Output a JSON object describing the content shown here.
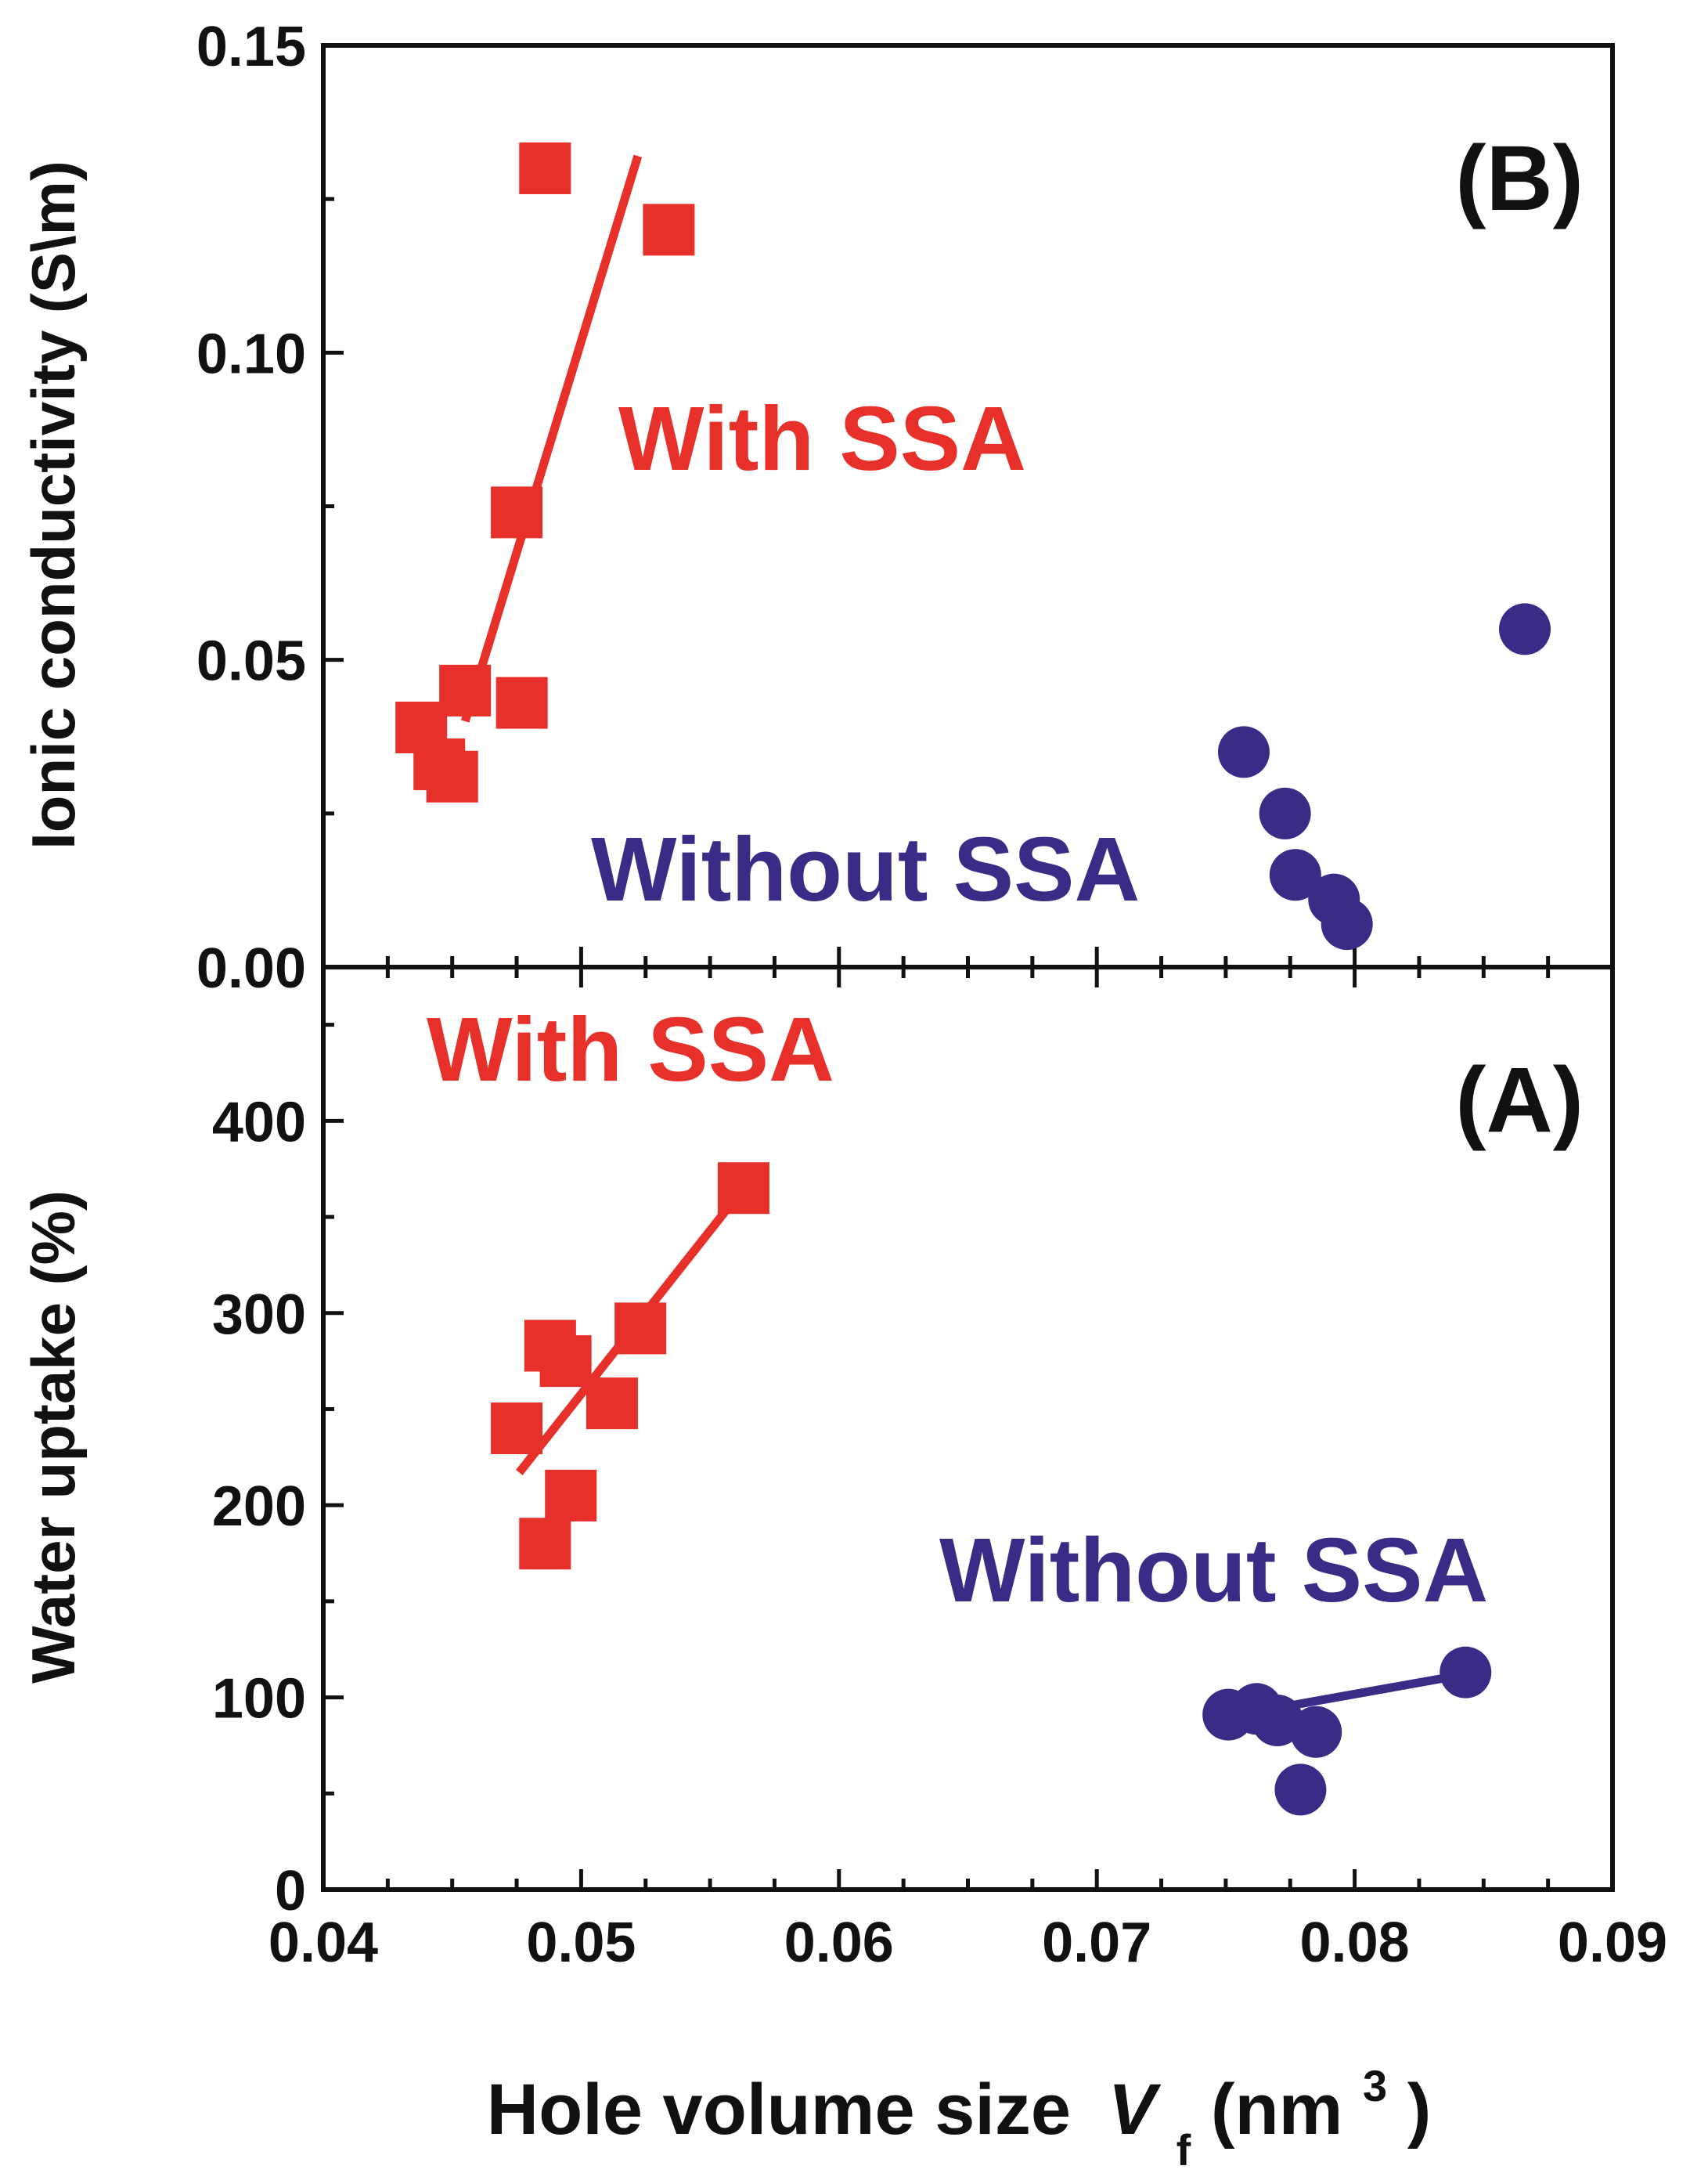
{
  "chart_data": [
    {
      "panel": "B",
      "type": "scatter",
      "panel_label": "(B)",
      "ylabel": "Ionic conductivity (S\\m)",
      "xlim": [
        0.04,
        0.09
      ],
      "ylim": [
        0.0,
        0.15
      ],
      "x_ticks": [
        "0.04",
        "0.05",
        "0.06",
        "0.07",
        "0.08",
        "0.09"
      ],
      "y_ticks": [
        {
          "value": 0.0,
          "label": "0.00"
        },
        {
          "value": 0.05,
          "label": "0.05"
        },
        {
          "value": 0.1,
          "label": "0.10"
        },
        {
          "value": 0.15,
          "label": "0.15"
        }
      ],
      "series": [
        {
          "name": "With SSA",
          "annotation": "With SSA",
          "marker": "square",
          "color": "#e8302a",
          "points": [
            [
              0.0486,
              0.13
            ],
            [
              0.0534,
              0.12
            ],
            [
              0.0475,
              0.074
            ],
            [
              0.0455,
              0.045
            ],
            [
              0.0477,
              0.043
            ],
            [
              0.0438,
              0.039
            ],
            [
              0.0445,
              0.033
            ],
            [
              0.045,
              0.031
            ]
          ],
          "fit_line": [
            [
              0.0455,
              0.04
            ],
            [
              0.0522,
              0.132
            ]
          ]
        },
        {
          "name": "Without SSA",
          "annotation": "Without SSA",
          "marker": "circle",
          "color": "#3b2a86",
          "points": [
            [
              0.0866,
              0.055
            ],
            [
              0.0757,
              0.035
            ],
            [
              0.0773,
              0.025
            ],
            [
              0.0777,
              0.015
            ],
            [
              0.0792,
              0.011
            ],
            [
              0.0797,
              0.007
            ]
          ]
        }
      ]
    },
    {
      "panel": "A",
      "type": "scatter",
      "panel_label": "(A)",
      "ylabel": "Water uptake (%)",
      "xlabel": "Hole volume size",
      "xlabel_var": "V",
      "xlabel_sub": "f",
      "xlabel_unit_open": " (nm",
      "xlabel_sup": "3",
      "xlabel_unit_close": ")",
      "xlim": [
        0.04,
        0.09
      ],
      "ylim": [
        0,
        480
      ],
      "x_ticks": [
        "0.04",
        "0.05",
        "0.06",
        "0.07",
        "0.08",
        "0.09"
      ],
      "y_ticks": [
        {
          "value": 0,
          "label": "0"
        },
        {
          "value": 100,
          "label": "100"
        },
        {
          "value": 200,
          "label": "200"
        },
        {
          "value": 300,
          "label": "300"
        },
        {
          "value": 400,
          "label": "400"
        }
      ],
      "series": [
        {
          "name": "With SSA",
          "annotation": "With SSA",
          "marker": "square",
          "color": "#e8302a",
          "points": [
            [
              0.0563,
              365
            ],
            [
              0.0523,
              292
            ],
            [
              0.0488,
              283
            ],
            [
              0.0494,
              275
            ],
            [
              0.0512,
              253
            ],
            [
              0.0475,
              240
            ],
            [
              0.0496,
              205
            ],
            [
              0.0486,
              180
            ]
          ],
          "fit_line": [
            [
              0.0476,
              217
            ],
            [
              0.0563,
              365
            ]
          ]
        },
        {
          "name": "Without SSA",
          "annotation": "Without SSA",
          "marker": "circle",
          "color": "#3b2a86",
          "points": [
            [
              0.0843,
              113
            ],
            [
              0.0751,
              91
            ],
            [
              0.0762,
              94
            ],
            [
              0.077,
              88
            ],
            [
              0.0785,
              82
            ],
            [
              0.0779,
              52
            ]
          ],
          "fit_line": [
            [
              0.0751,
              90
            ],
            [
              0.0843,
              112
            ]
          ]
        }
      ]
    }
  ]
}
